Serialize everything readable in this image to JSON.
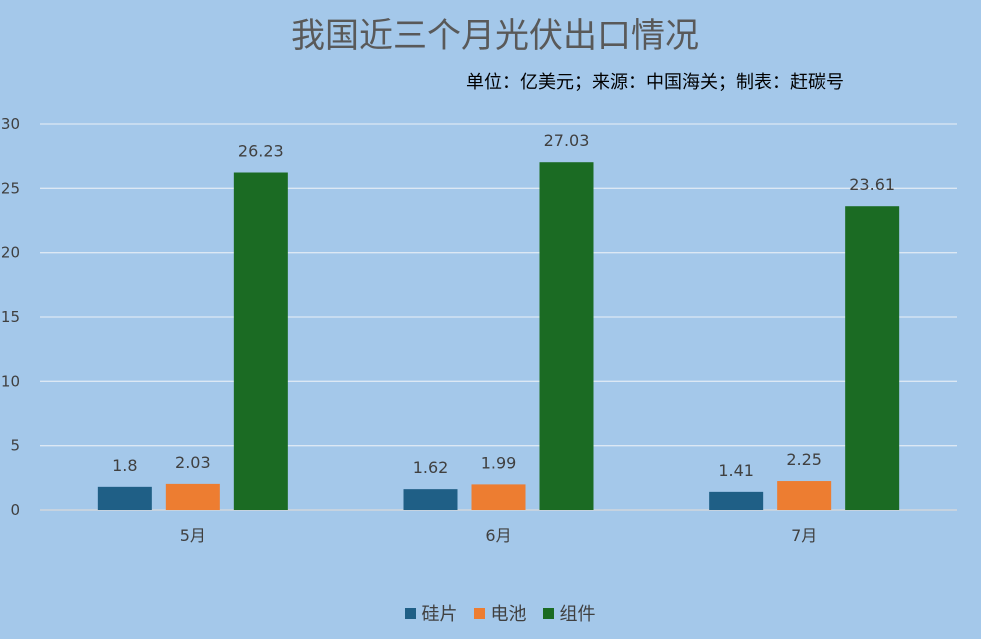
{
  "chart_data": {
    "type": "bar",
    "title": "我国近三个月光伏出口情况",
    "subtitle": "单位：亿美元；来源：中国海关；制表：赶碳号",
    "categories": [
      "5月",
      "6月",
      "7月"
    ],
    "series": [
      {
        "name": "硅片",
        "values": [
          1.8,
          1.62,
          1.41
        ],
        "value_labels": [
          "1.8",
          "1.62",
          "1.41"
        ],
        "color": "#1f5f86"
      },
      {
        "name": "电池",
        "values": [
          2.03,
          1.99,
          2.25
        ],
        "value_labels": [
          "2.03",
          "1.99",
          "2.25"
        ],
        "color": "#ed7d31"
      },
      {
        "name": "组件",
        "values": [
          26.23,
          27.03,
          23.61
        ],
        "value_labels": [
          "26.23",
          "27.03",
          "23.61"
        ],
        "color": "#1b6b23"
      }
    ],
    "yticks": [
      "0",
      "5",
      "10",
      "15",
      "20",
      "25",
      "30"
    ],
    "ylim": [
      0,
      30
    ],
    "grid": true,
    "legend_position": "bottom",
    "background_color": "#a4c8ea"
  }
}
